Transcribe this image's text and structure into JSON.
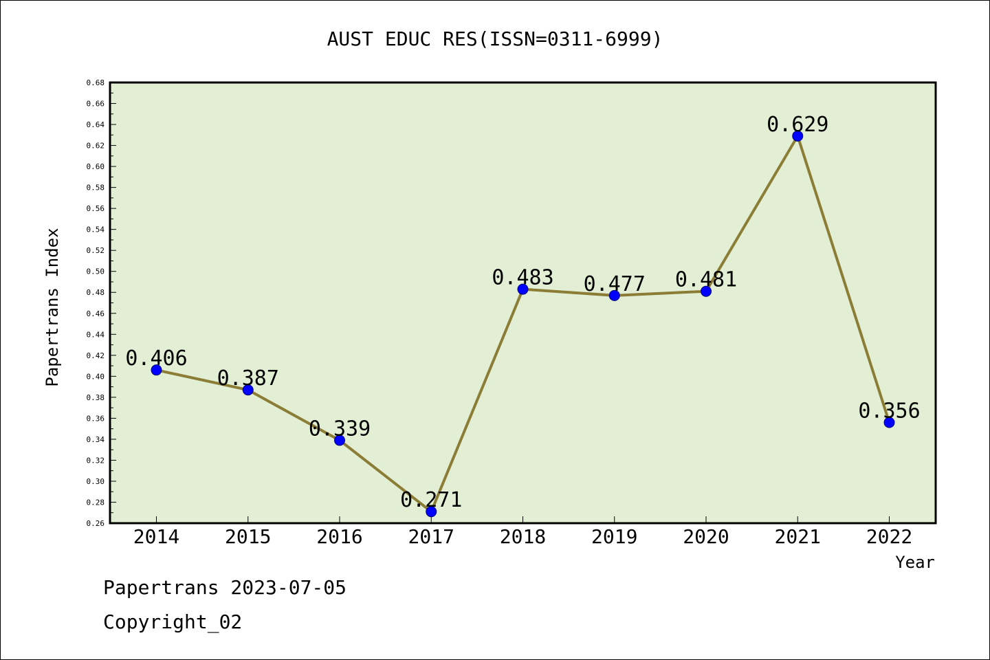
{
  "chart_data": {
    "type": "line",
    "title": "AUST EDUC RES(ISSN=0311-6999)",
    "xlabel": "Year",
    "ylabel": "Papertrans Index",
    "x": [
      "2014",
      "2015",
      "2016",
      "2017",
      "2018",
      "2019",
      "2020",
      "2021",
      "2022"
    ],
    "values": [
      0.406,
      0.387,
      0.339,
      0.271,
      0.483,
      0.477,
      0.481,
      0.629,
      0.356
    ],
    "data_labels": [
      "0.406",
      "0.387",
      "0.339",
      "0.271",
      "0.483",
      "0.477",
      "0.481",
      "0.629",
      "0.356"
    ],
    "ylim": [
      0.26,
      0.68
    ],
    "yticks": [
      "0.26",
      "0.28",
      "0.30",
      "0.32",
      "0.34",
      "0.36",
      "0.38",
      "0.40",
      "0.42",
      "0.44",
      "0.46",
      "0.48",
      "0.50",
      "0.52",
      "0.54",
      "0.56",
      "0.58",
      "0.60",
      "0.62",
      "0.64",
      "0.66",
      "0.68"
    ],
    "grid": false,
    "colors": {
      "plot_background": "#e2efd5",
      "line": "#8b7d36",
      "marker": "#0000ff"
    }
  },
  "footer": {
    "line1": "Papertrans 2023-07-05",
    "line2": "Copyright_02"
  }
}
